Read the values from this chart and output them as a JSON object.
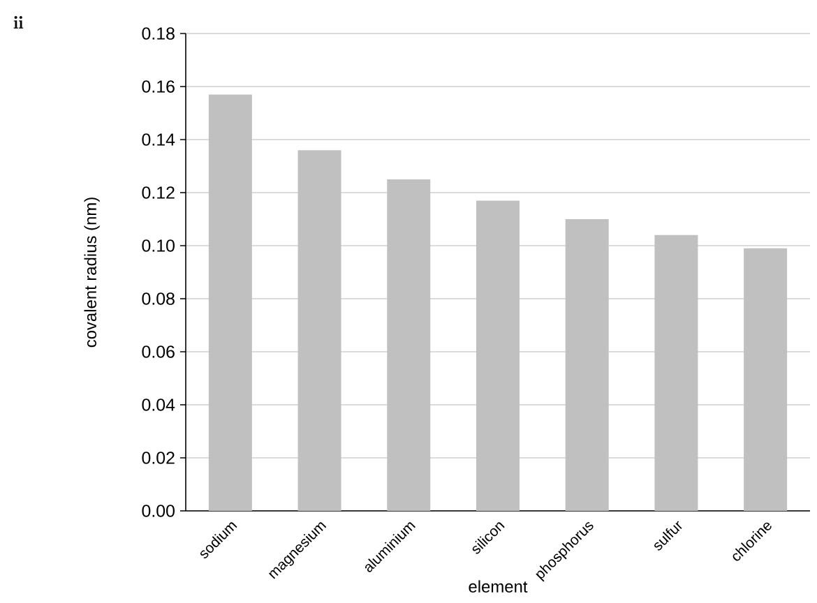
{
  "chart_data": {
    "type": "bar",
    "xlabel": "element",
    "ylabel": "covalent radius (nm)",
    "annotations": [
      "ii"
    ],
    "categories": [
      "sodium",
      "magnesium",
      "aluminium",
      "silicon",
      "phosphorus",
      "sulfur",
      "chlorine"
    ],
    "values": [
      0.157,
      0.136,
      0.125,
      0.117,
      0.11,
      0.104,
      0.099
    ],
    "color": "#c0c0c0",
    "ylim": [
      0,
      0.18
    ],
    "yticks": [
      {
        "value": 0,
        "label": "0.00"
      },
      {
        "value": 0.02,
        "label": "0.02"
      },
      {
        "value": 0.04,
        "label": "0.04"
      },
      {
        "value": 0.06,
        "label": "0.06"
      },
      {
        "value": 0.08,
        "label": "0.08"
      },
      {
        "value": 0.1,
        "label": "0.10"
      },
      {
        "value": 0.12,
        "label": "0.12"
      },
      {
        "value": 0.14,
        "label": "0.14"
      },
      {
        "value": 0.16,
        "label": "0.16"
      },
      {
        "value": 0.18,
        "label": "0.18"
      }
    ],
    "grid": "y"
  }
}
